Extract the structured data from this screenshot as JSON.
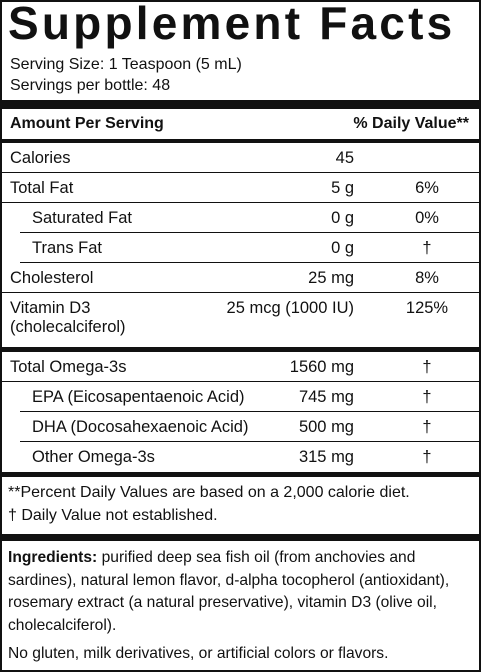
{
  "header": {
    "title": "Supplement Facts",
    "serving_size": "Serving Size: 1 Teaspoon (5 mL)",
    "servings_per_container": "Servings per bottle: 48"
  },
  "table": {
    "columns": [
      "Amount Per Serving",
      "% Daily Value**"
    ],
    "sections": [
      {
        "rows": [
          {
            "name": "Calories",
            "amount": "45"
          },
          {
            "name": "Total Fat",
            "amount": "5 g",
            "dv": "6%",
            "sub": [
              {
                "name": "Saturated Fat",
                "amount": "0 g",
                "dv": "0%"
              },
              {
                "name": "Trans Fat",
                "amount": "0 g",
                "dv": "†"
              }
            ]
          },
          {
            "name": "Cholesterol",
            "amount": "25 mg",
            "dv": "8%"
          },
          {
            "name": "Vitamin D3",
            "name_line2": "(cholecalciferol)",
            "amount": "25 mcg (1000 IU)",
            "dv": "125%"
          }
        ]
      },
      {
        "rows": [
          {
            "name": "Total Omega-3s",
            "amount": "1560 mg",
            "dv": "†",
            "sub": [
              {
                "name": "EPA (Eicosapentaenoic Acid)",
                "amount": "745 mg",
                "dv": "†"
              },
              {
                "name": "DHA (Docosahexaenoic Acid)",
                "amount": "500 mg",
                "dv": "†"
              },
              {
                "name": "Other Omega-3s",
                "amount": "315 mg",
                "dv": "†"
              }
            ]
          }
        ]
      }
    ]
  },
  "footnotes": [
    "**Percent Daily Values are based on a 2,000 calorie diet.",
    "†  Daily Value not established."
  ],
  "ingredients": {
    "label": "Ingredients:",
    "text": "purified deep sea fish oil (from anchovies and sardines), natural lemon flavor, d-alpha tocopherol (antioxidant), rosemary extract (a natural preservative), vitamin D3 (olive oil, cholecalciferol).",
    "note": "No gluten, milk derivatives, or artificial colors or flavors."
  }
}
